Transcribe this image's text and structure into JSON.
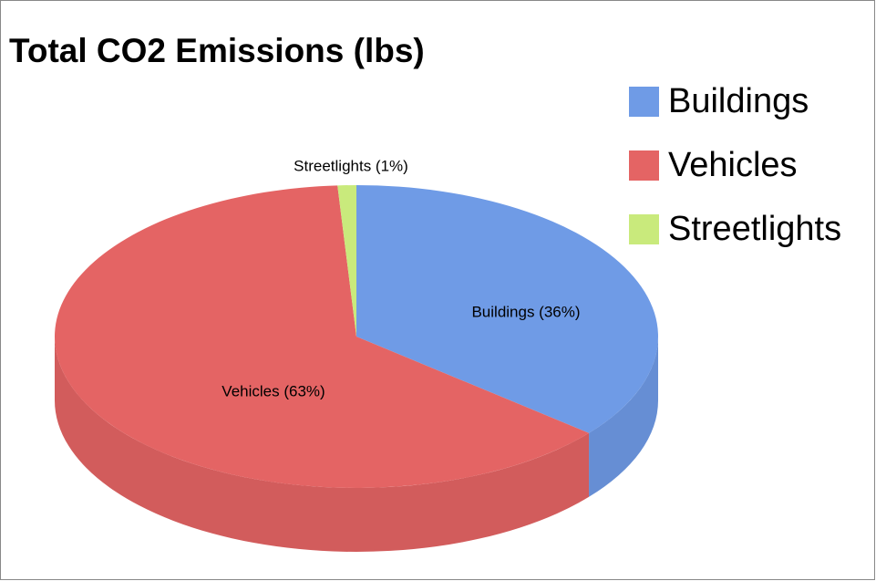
{
  "chart_data": {
    "type": "pie3d",
    "title": "Total CO2 Emissions (lbs)",
    "categories": [
      "Buildings",
      "Vehicles",
      "Streetlights"
    ],
    "values": [
      36,
      63,
      1
    ],
    "value_labels": [
      "Buildings (36%)",
      "Vehicles (63%)",
      "Streetlights (1%)"
    ],
    "colors": [
      "#6f9be6",
      "#e46464",
      "#c9ea7c"
    ],
    "legend": "right"
  }
}
